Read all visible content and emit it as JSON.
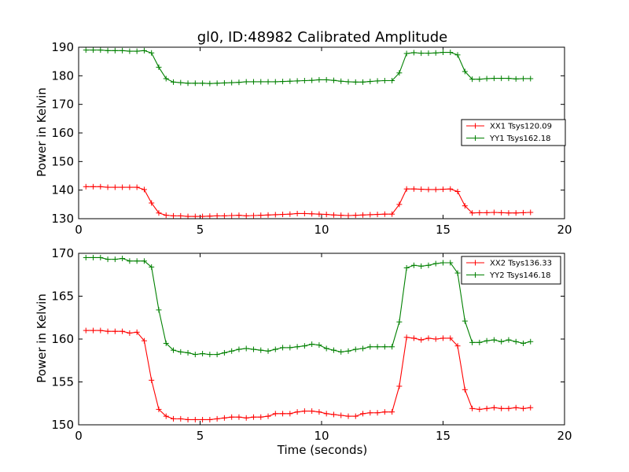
{
  "chart_data": [
    {
      "type": "line",
      "title": "gl0, ID:48982 Calibrated Amplitude",
      "xlabel": "",
      "ylabel": "Power in Kelvin",
      "xlim": [
        0,
        20
      ],
      "ylim": [
        130,
        190
      ],
      "xticks": [
        0,
        5,
        10,
        15,
        20
      ],
      "yticks": [
        130,
        140,
        150,
        160,
        170,
        180,
        190
      ],
      "grid": false,
      "legend_position": "center-right",
      "x": [
        0.3,
        0.6,
        0.9,
        1.2,
        1.5,
        1.8,
        2.1,
        2.4,
        2.7,
        3.0,
        3.3,
        3.6,
        3.9,
        4.2,
        4.5,
        4.8,
        5.1,
        5.4,
        5.7,
        6.0,
        6.3,
        6.6,
        6.9,
        7.2,
        7.5,
        7.8,
        8.1,
        8.4,
        8.7,
        9.0,
        9.3,
        9.6,
        9.9,
        10.2,
        10.5,
        10.8,
        11.1,
        11.4,
        11.7,
        12.0,
        12.3,
        12.6,
        12.9,
        13.2,
        13.5,
        13.8,
        14.1,
        14.4,
        14.7,
        15.0,
        15.3,
        15.6,
        15.9,
        16.2,
        16.5,
        16.8,
        17.1,
        17.4,
        17.7,
        18.0,
        18.3,
        18.6
      ],
      "series": [
        {
          "name": "XX1 Tsys120.09",
          "color": "#ff0000",
          "values": [
            141.2,
            141.2,
            141.2,
            141.0,
            141.0,
            141.0,
            141.0,
            141.0,
            140.2,
            135.5,
            132.0,
            131.2,
            131.0,
            131.0,
            130.8,
            130.8,
            130.8,
            130.9,
            131.0,
            131.0,
            131.1,
            131.2,
            131.0,
            131.1,
            131.2,
            131.3,
            131.4,
            131.5,
            131.6,
            131.8,
            131.8,
            131.7,
            131.6,
            131.5,
            131.3,
            131.2,
            131.1,
            131.2,
            131.3,
            131.4,
            131.5,
            131.6,
            131.6,
            135.0,
            140.4,
            140.4,
            140.3,
            140.2,
            140.2,
            140.3,
            140.4,
            139.5,
            134.5,
            132.0,
            132.1,
            132.1,
            132.2,
            132.1,
            132.0,
            132.0,
            132.1,
            132.2
          ]
        },
        {
          "name": "YY1 Tsys162.18",
          "color": "#008000",
          "values": [
            189.0,
            189.0,
            189.0,
            188.8,
            188.8,
            188.8,
            188.6,
            188.6,
            188.8,
            188.0,
            183.0,
            179.0,
            177.8,
            177.6,
            177.4,
            177.4,
            177.4,
            177.3,
            177.4,
            177.5,
            177.6,
            177.7,
            177.9,
            177.9,
            177.9,
            177.9,
            177.9,
            178.0,
            178.1,
            178.2,
            178.3,
            178.4,
            178.6,
            178.6,
            178.4,
            178.1,
            177.9,
            177.8,
            177.8,
            178.0,
            178.2,
            178.3,
            178.3,
            181.0,
            187.8,
            188.1,
            187.9,
            187.9,
            188.0,
            188.2,
            188.2,
            187.3,
            181.5,
            178.8,
            178.8,
            179.0,
            179.1,
            179.1,
            179.1,
            178.9,
            179.0,
            179.0
          ]
        }
      ]
    },
    {
      "type": "line",
      "title": "",
      "xlabel": "Time (seconds)",
      "ylabel": "Power in Kelvin",
      "xlim": [
        0,
        20
      ],
      "ylim": [
        150,
        170
      ],
      "xticks": [
        0,
        5,
        10,
        15,
        20
      ],
      "yticks": [
        150,
        155,
        160,
        165,
        170
      ],
      "grid": false,
      "legend_position": "top-right",
      "x": [
        0.3,
        0.6,
        0.9,
        1.2,
        1.5,
        1.8,
        2.1,
        2.4,
        2.7,
        3.0,
        3.3,
        3.6,
        3.9,
        4.2,
        4.5,
        4.8,
        5.1,
        5.4,
        5.7,
        6.0,
        6.3,
        6.6,
        6.9,
        7.2,
        7.5,
        7.8,
        8.1,
        8.4,
        8.7,
        9.0,
        9.3,
        9.6,
        9.9,
        10.2,
        10.5,
        10.8,
        11.1,
        11.4,
        11.7,
        12.0,
        12.3,
        12.6,
        12.9,
        13.2,
        13.5,
        13.8,
        14.1,
        14.4,
        14.7,
        15.0,
        15.3,
        15.6,
        15.9,
        16.2,
        16.5,
        16.8,
        17.1,
        17.4,
        17.7,
        18.0,
        18.3,
        18.6
      ],
      "series": [
        {
          "name": "XX2 Tsys136.33",
          "color": "#ff0000",
          "values": [
            161.0,
            161.0,
            161.0,
            160.9,
            160.9,
            160.9,
            160.7,
            160.8,
            159.8,
            155.2,
            151.8,
            151.0,
            150.7,
            150.7,
            150.6,
            150.6,
            150.6,
            150.6,
            150.7,
            150.8,
            150.9,
            150.9,
            150.8,
            150.9,
            150.9,
            151.0,
            151.3,
            151.3,
            151.3,
            151.5,
            151.6,
            151.6,
            151.5,
            151.3,
            151.2,
            151.1,
            151.0,
            151.0,
            151.3,
            151.4,
            151.4,
            151.5,
            151.5,
            154.5,
            160.2,
            160.1,
            159.9,
            160.1,
            160.0,
            160.1,
            160.1,
            159.2,
            154.1,
            151.9,
            151.8,
            151.9,
            152.0,
            151.9,
            151.9,
            152.0,
            151.9,
            152.0
          ]
        },
        {
          "name": "YY2 Tsys146.18",
          "color": "#008000",
          "values": [
            169.5,
            169.5,
            169.5,
            169.3,
            169.3,
            169.4,
            169.1,
            169.1,
            169.1,
            168.4,
            163.4,
            159.5,
            158.7,
            158.5,
            158.4,
            158.2,
            158.3,
            158.2,
            158.2,
            158.4,
            158.6,
            158.8,
            158.9,
            158.8,
            158.7,
            158.6,
            158.8,
            159.0,
            159.0,
            159.1,
            159.2,
            159.4,
            159.3,
            158.9,
            158.7,
            158.5,
            158.6,
            158.8,
            158.9,
            159.1,
            159.1,
            159.1,
            159.1,
            162.0,
            168.3,
            168.6,
            168.5,
            168.6,
            168.8,
            168.9,
            168.9,
            167.7,
            162.1,
            159.6,
            159.6,
            159.8,
            159.9,
            159.7,
            159.9,
            159.7,
            159.5,
            159.7
          ]
        }
      ]
    }
  ]
}
